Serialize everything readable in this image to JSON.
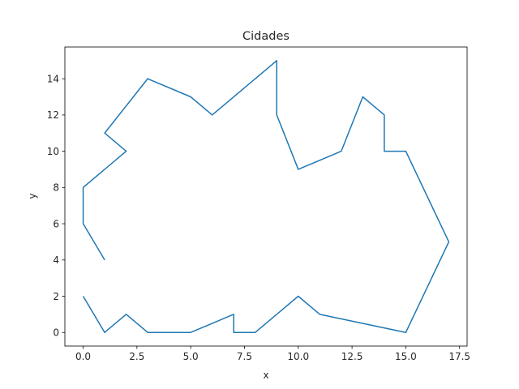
{
  "chart_data": {
    "type": "line",
    "title": "Cidades",
    "xlabel": "x",
    "ylabel": "y",
    "xlim": [
      -0.85,
      17.85
    ],
    "ylim": [
      -0.75,
      15.75
    ],
    "xticks": [
      0,
      2.5,
      5,
      7.5,
      10,
      12.5,
      15,
      17.5
    ],
    "xtick_labels": [
      "0.0",
      "2.5",
      "5.0",
      "7.5",
      "10.0",
      "12.5",
      "15.0",
      "17.5"
    ],
    "yticks": [
      0,
      2,
      4,
      6,
      8,
      10,
      12,
      14
    ],
    "ytick_labels": [
      "0",
      "2",
      "4",
      "6",
      "8",
      "10",
      "12",
      "14"
    ],
    "grid": false,
    "line_color": "#1f77b4",
    "series": [
      {
        "x": [
          1,
          0,
          0,
          2,
          1,
          3,
          5,
          6,
          9,
          9,
          10,
          12,
          13,
          14,
          14,
          15,
          17,
          15,
          11,
          10,
          8,
          7,
          7,
          5,
          3,
          2,
          1,
          0
        ],
        "y": [
          4,
          6,
          8,
          10,
          11,
          14,
          13,
          12,
          15,
          12,
          9,
          10,
          13,
          12,
          10,
          10,
          5,
          0,
          1,
          2,
          0,
          0,
          1,
          0,
          0,
          1,
          0,
          2
        ]
      }
    ]
  }
}
